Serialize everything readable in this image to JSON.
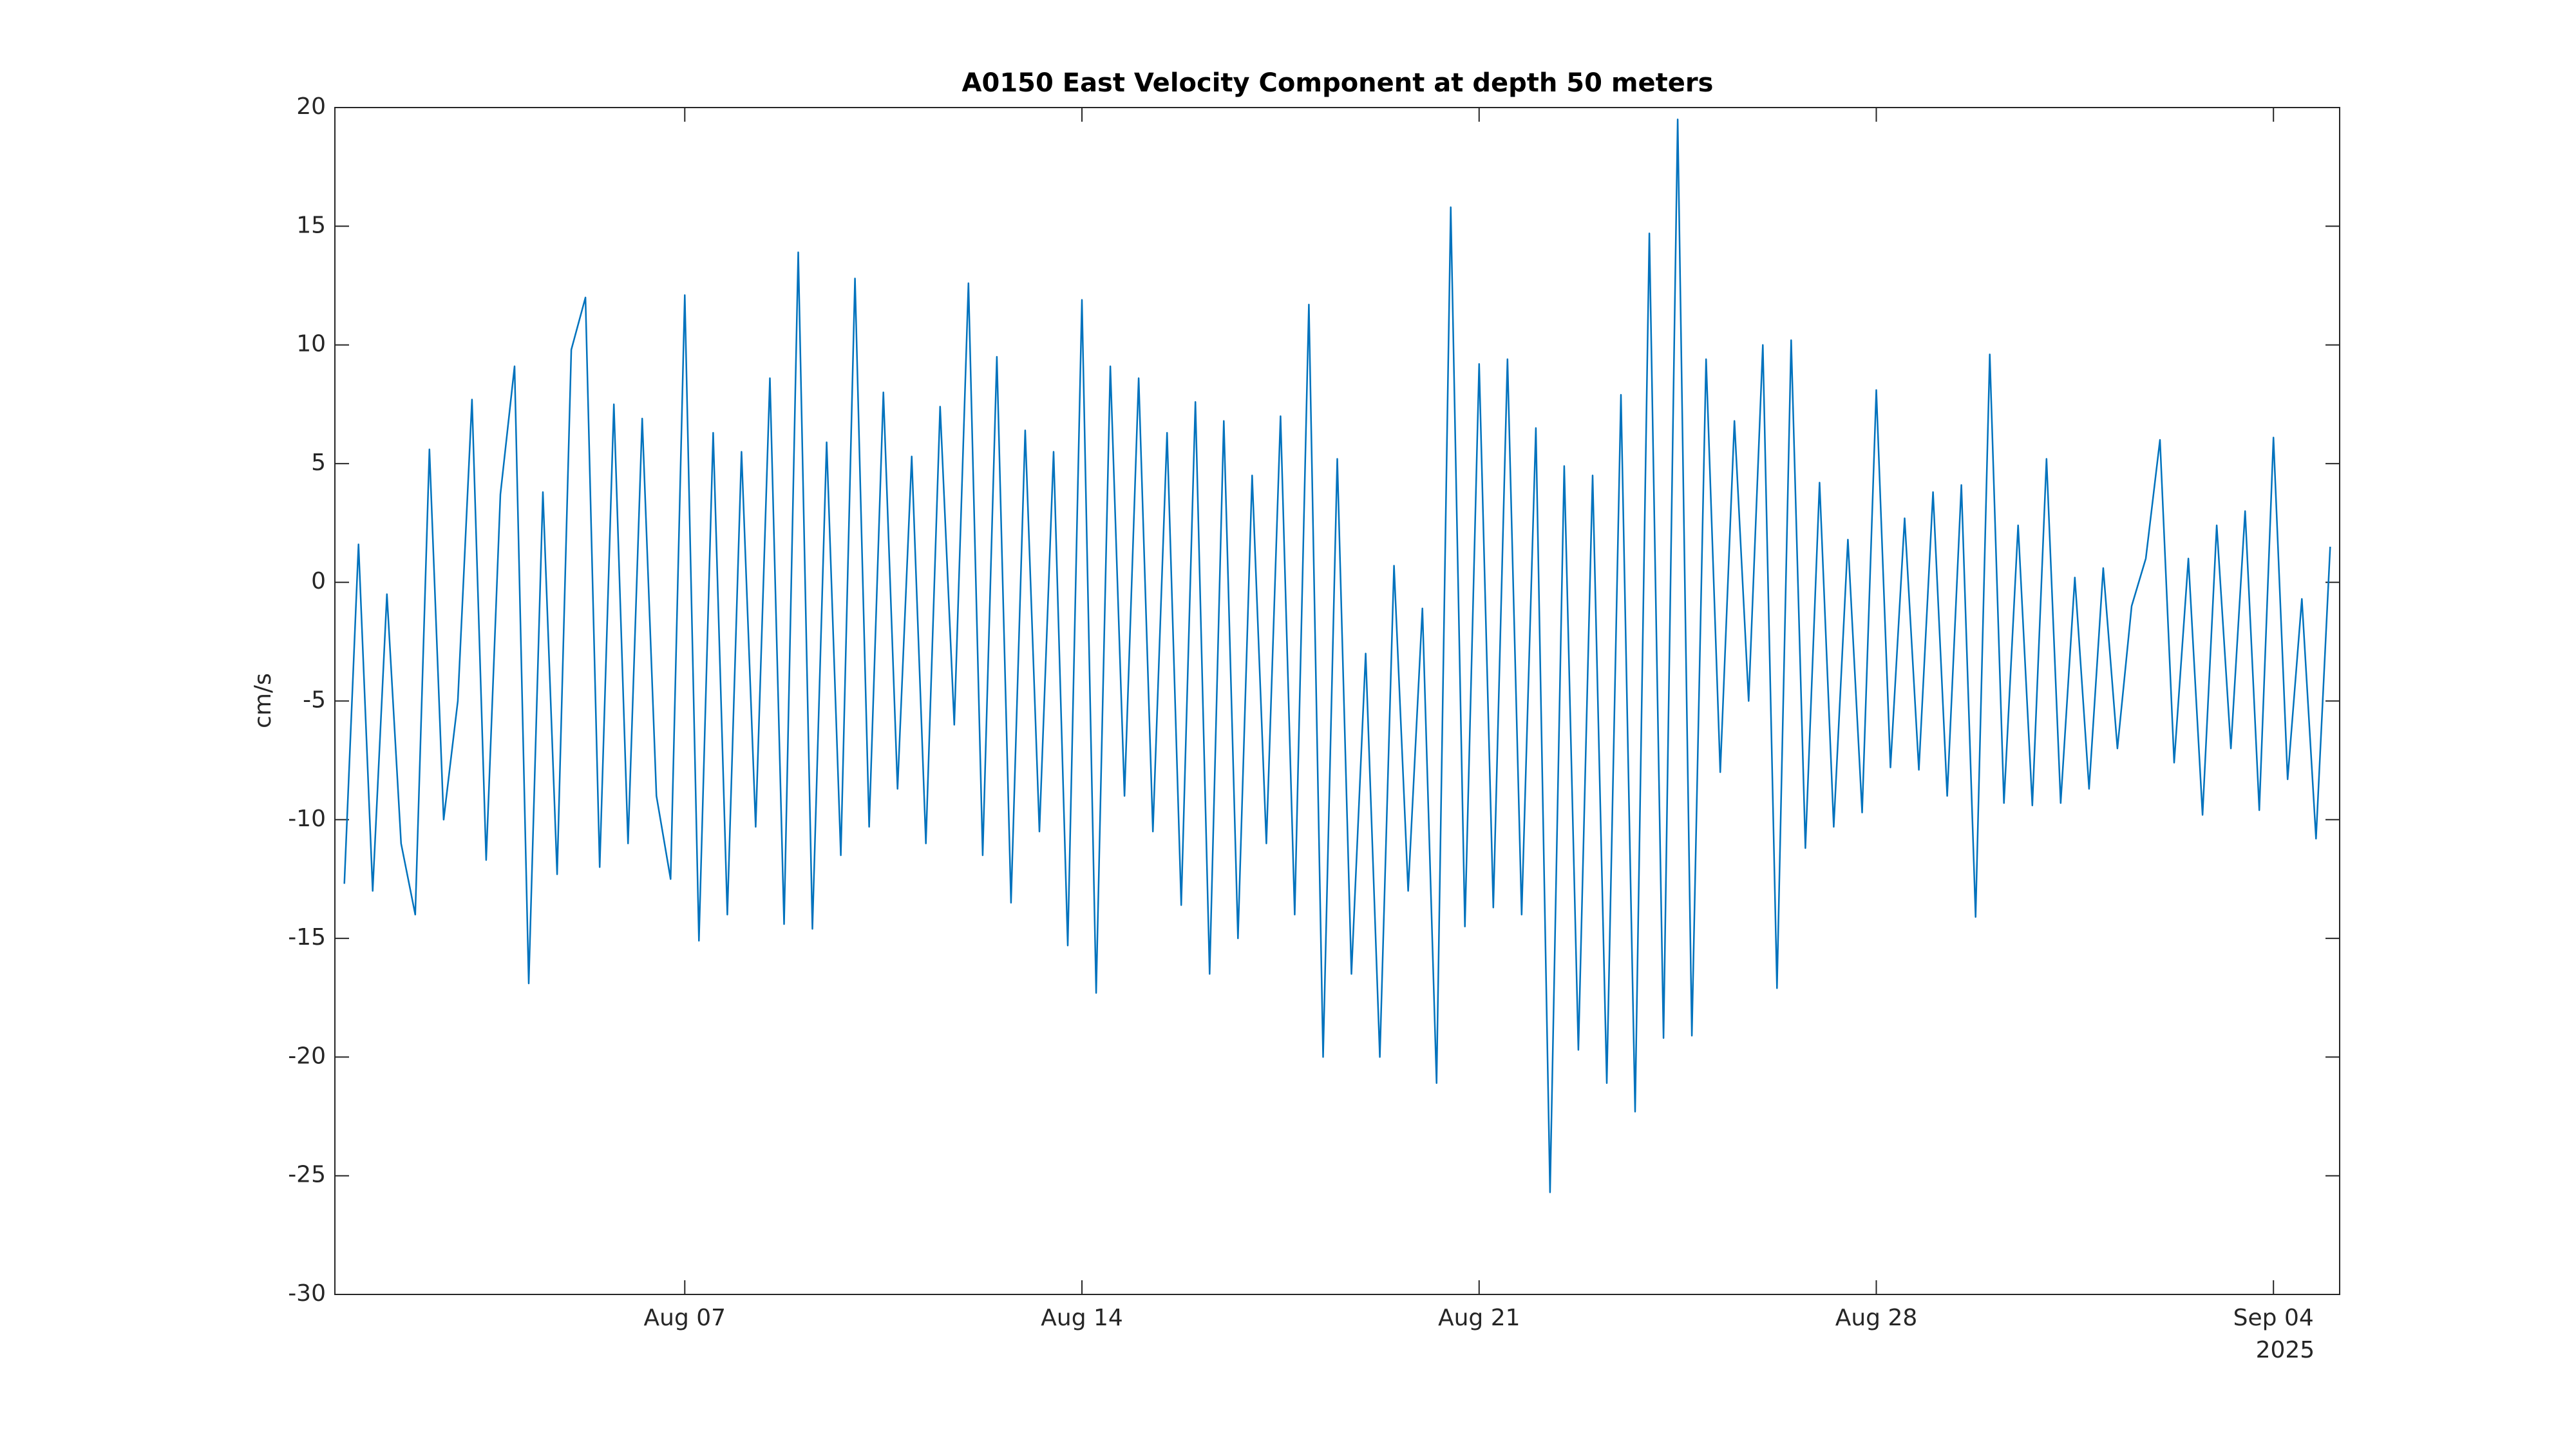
{
  "chart_data": {
    "type": "line",
    "title": "A0150 East Velocity Component at depth 50 meters",
    "y_label": "cm/s",
    "year_label": "2025",
    "xlim": [
      "2025-07-31 20:00",
      "2025-09-05 04:00"
    ],
    "xticks": [
      {
        "value": "2025-08-07",
        "label": "Aug 07"
      },
      {
        "value": "2025-08-14",
        "label": "Aug 14"
      },
      {
        "value": "2025-08-21",
        "label": "Aug 21"
      },
      {
        "value": "2025-08-28",
        "label": "Aug 28"
      },
      {
        "value": "2025-09-04",
        "label": "Sep 04"
      }
    ],
    "ylim": [
      -30,
      20
    ],
    "yticks": [
      20,
      15,
      10,
      5,
      0,
      -5,
      -10,
      -15,
      -20,
      -25,
      -30
    ],
    "grid": false,
    "series": [
      {
        "color": "#0072bd",
        "x": [
          "2025-08-01 00:00",
          "2025-08-01 06:00",
          "2025-08-01 12:00",
          "2025-08-01 18:00",
          "2025-08-02 00:00",
          "2025-08-02 06:00",
          "2025-08-02 12:00",
          "2025-08-02 18:00",
          "2025-08-03 00:00",
          "2025-08-03 06:00",
          "2025-08-03 12:00",
          "2025-08-03 18:00",
          "2025-08-04 00:00",
          "2025-08-04 06:00",
          "2025-08-04 12:00",
          "2025-08-04 18:00",
          "2025-08-05 00:00",
          "2025-08-05 06:00",
          "2025-08-05 12:00",
          "2025-08-05 18:00",
          "2025-08-06 00:00",
          "2025-08-06 06:00",
          "2025-08-06 12:00",
          "2025-08-06 18:00",
          "2025-08-07 00:00",
          "2025-08-07 06:00",
          "2025-08-07 12:00",
          "2025-08-07 18:00",
          "2025-08-08 00:00",
          "2025-08-08 06:00",
          "2025-08-08 12:00",
          "2025-08-08 18:00",
          "2025-08-09 00:00",
          "2025-08-09 06:00",
          "2025-08-09 12:00",
          "2025-08-09 18:00",
          "2025-08-10 00:00",
          "2025-08-10 06:00",
          "2025-08-10 12:00",
          "2025-08-10 18:00",
          "2025-08-11 00:00",
          "2025-08-11 06:00",
          "2025-08-11 12:00",
          "2025-08-11 18:00",
          "2025-08-12 00:00",
          "2025-08-12 06:00",
          "2025-08-12 12:00",
          "2025-08-12 18:00",
          "2025-08-13 00:00",
          "2025-08-13 06:00",
          "2025-08-13 12:00",
          "2025-08-13 18:00",
          "2025-08-14 00:00",
          "2025-08-14 06:00",
          "2025-08-14 12:00",
          "2025-08-14 18:00",
          "2025-08-15 00:00",
          "2025-08-15 06:00",
          "2025-08-15 12:00",
          "2025-08-15 18:00",
          "2025-08-16 00:00",
          "2025-08-16 06:00",
          "2025-08-16 12:00",
          "2025-08-16 18:00",
          "2025-08-17 00:00",
          "2025-08-17 06:00",
          "2025-08-17 12:00",
          "2025-08-17 18:00",
          "2025-08-18 00:00",
          "2025-08-18 06:00",
          "2025-08-18 12:00",
          "2025-08-18 18:00",
          "2025-08-19 00:00",
          "2025-08-19 06:00",
          "2025-08-19 12:00",
          "2025-08-19 18:00",
          "2025-08-20 00:00",
          "2025-08-20 06:00",
          "2025-08-20 12:00",
          "2025-08-20 18:00",
          "2025-08-21 00:00",
          "2025-08-21 06:00",
          "2025-08-21 12:00",
          "2025-08-21 18:00",
          "2025-08-22 00:00",
          "2025-08-22 06:00",
          "2025-08-22 12:00",
          "2025-08-22 18:00",
          "2025-08-23 00:00",
          "2025-08-23 06:00",
          "2025-08-23 12:00",
          "2025-08-23 18:00",
          "2025-08-24 00:00",
          "2025-08-24 06:00",
          "2025-08-24 12:00",
          "2025-08-24 18:00",
          "2025-08-25 00:00",
          "2025-08-25 06:00",
          "2025-08-25 12:00",
          "2025-08-25 18:00",
          "2025-08-26 00:00",
          "2025-08-26 06:00",
          "2025-08-26 12:00",
          "2025-08-26 18:00",
          "2025-08-27 00:00",
          "2025-08-27 06:00",
          "2025-08-27 12:00",
          "2025-08-27 18:00",
          "2025-08-28 00:00",
          "2025-08-28 06:00",
          "2025-08-28 12:00",
          "2025-08-28 18:00",
          "2025-08-29 00:00",
          "2025-08-29 06:00",
          "2025-08-29 12:00",
          "2025-08-29 18:00",
          "2025-08-30 00:00",
          "2025-08-30 06:00",
          "2025-08-30 12:00",
          "2025-08-30 18:00",
          "2025-08-31 00:00",
          "2025-08-31 06:00",
          "2025-08-31 12:00",
          "2025-08-31 18:00",
          "2025-09-01 00:00",
          "2025-09-01 06:00",
          "2025-09-01 12:00",
          "2025-09-01 18:00",
          "2025-09-02 00:00",
          "2025-09-02 06:00",
          "2025-09-02 12:00",
          "2025-09-02 18:00",
          "2025-09-03 00:00",
          "2025-09-03 06:00",
          "2025-09-03 12:00",
          "2025-09-03 18:00",
          "2025-09-04 00:00",
          "2025-09-04 06:00",
          "2025-09-04 12:00",
          "2025-09-04 18:00",
          "2025-09-05 00:00"
        ],
        "values": [
          -12.7,
          1.6,
          -13,
          -0.5,
          -11,
          -14,
          5.6,
          -10,
          -5,
          7.7,
          -11.7,
          3.7,
          9.1,
          -16.9,
          3.8,
          -12.3,
          9.8,
          12,
          -12,
          7.5,
          -11,
          6.9,
          -9,
          -12.5,
          12.1,
          -15.1,
          6.3,
          -14,
          5.5,
          -10.3,
          8.6,
          -14.4,
          13.9,
          -14.6,
          5.9,
          -11.5,
          12.8,
          -10.3,
          8,
          -8.7,
          5.3,
          -11,
          7.4,
          -6,
          12.6,
          -11.5,
          9.5,
          -13.5,
          6.4,
          -10.5,
          5.5,
          -15.3,
          11.9,
          -17.3,
          9.1,
          -9,
          8.6,
          -10.5,
          6.3,
          -13.6,
          7.6,
          -16.5,
          6.8,
          -15,
          4.5,
          -11,
          7,
          -14,
          11.7,
          -20,
          5.2,
          -16.5,
          -3,
          -20,
          0.7,
          -13,
          -1.1,
          -21.1,
          15.8,
          -14.5,
          9.2,
          -13.7,
          9.4,
          -14,
          6.5,
          -25.7,
          4.9,
          -19.7,
          4.5,
          -21.1,
          7.9,
          -22.3,
          14.7,
          -19.2,
          19.5,
          -19.1,
          9.4,
          -8,
          6.8,
          -5,
          10,
          -17.1,
          10.2,
          -11.2,
          4.2,
          -10.3,
          1.8,
          -9.7,
          8.1,
          -7.8,
          2.7,
          -7.9,
          3.8,
          -9,
          4.1,
          -14.1,
          9.6,
          -9.3,
          2.4,
          -9.4,
          5.2,
          -9.3,
          0.2,
          -8.7,
          0.6,
          -7,
          -1,
          1,
          6,
          -7.6,
          1,
          -9.8,
          2.4,
          -7,
          3,
          -9.6,
          6.1,
          -8.3,
          -0.7,
          -10.8,
          1.5
        ]
      }
    ]
  }
}
